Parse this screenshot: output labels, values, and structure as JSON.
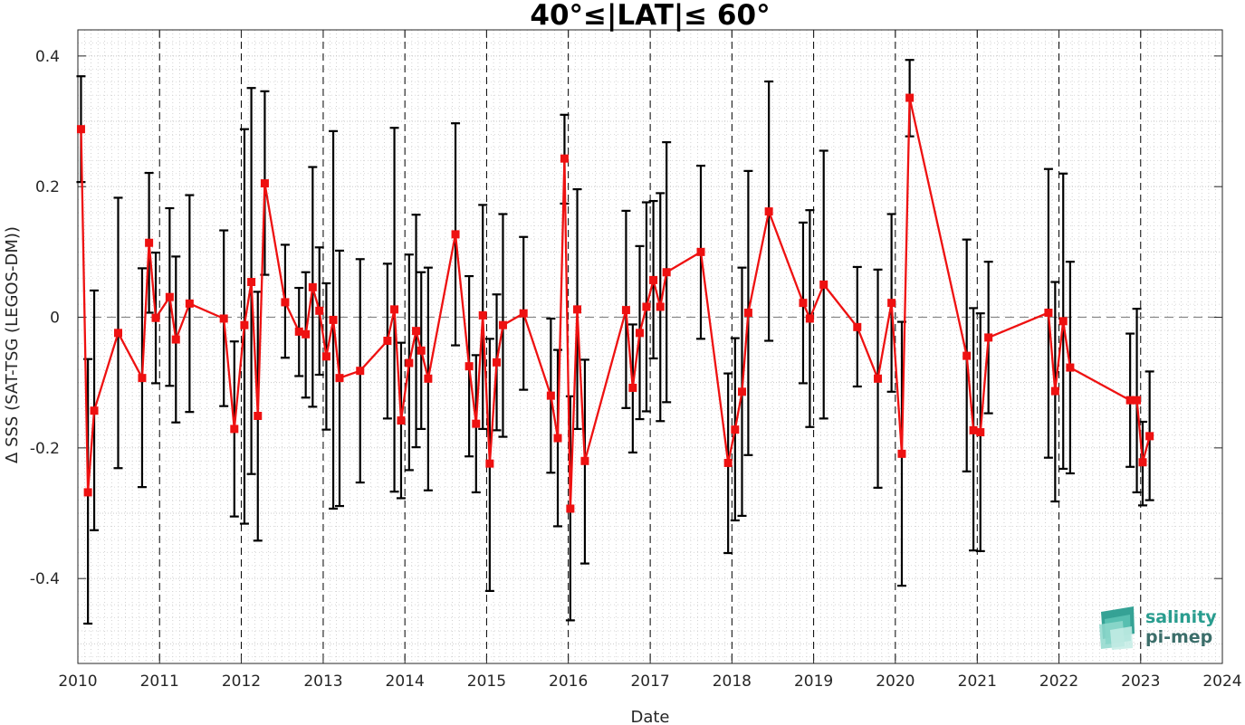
{
  "chart_data": {
    "type": "line",
    "title": "40°≤|LAT|≤ 60°",
    "xlabel": "Date",
    "ylabel": "Δ SSS (SAT-TSG (LEGOS-DM))",
    "xlim": [
      "2010-01-01",
      "2024-01-01"
    ],
    "ylim": [
      -0.53,
      0.44
    ],
    "xtick_labels": [
      "2010",
      "2011",
      "2012",
      "2013",
      "2014",
      "2015",
      "2016",
      "2017",
      "2018",
      "2019",
      "2020",
      "2021",
      "2022",
      "2023",
      "2024"
    ],
    "ytick_values": [
      -0.4,
      -0.2,
      0,
      0.2,
      0.4
    ],
    "ytick_labels": [
      "-0.4",
      "-0.2",
      "0",
      "0.2",
      "0.4"
    ],
    "grid": "minor dotted",
    "zero_line": 0,
    "year_boundaries_dashed": true,
    "series": [
      {
        "color": "#ee1111",
        "error_bar_color": "#000000",
        "marker": "square",
        "points": [
          {
            "x": "2010-01-15",
            "y": 0.288,
            "lo": 0.207,
            "hi": 0.369
          },
          {
            "x": "2010-02-15",
            "y": -0.268,
            "lo": -0.469,
            "hi": -0.064
          },
          {
            "x": "2010-03-15",
            "y": -0.143,
            "lo": -0.326,
            "hi": 0.041
          },
          {
            "x": "2010-06-30",
            "y": -0.024,
            "lo": -0.231,
            "hi": 0.183
          },
          {
            "x": "2010-10-15",
            "y": -0.093,
            "lo": -0.26,
            "hi": 0.075
          },
          {
            "x": "2010-11-15",
            "y": 0.114,
            "lo": 0.007,
            "hi": 0.221
          },
          {
            "x": "2010-12-15",
            "y": -0.001,
            "lo": -0.101,
            "hi": 0.099
          },
          {
            "x": "2011-02-15",
            "y": 0.031,
            "lo": -0.105,
            "hi": 0.167
          },
          {
            "x": "2011-03-15",
            "y": -0.034,
            "lo": -0.161,
            "hi": 0.093
          },
          {
            "x": "2011-05-15",
            "y": 0.021,
            "lo": -0.145,
            "hi": 0.187
          },
          {
            "x": "2011-10-15",
            "y": -0.002,
            "lo": -0.136,
            "hi": 0.133
          },
          {
            "x": "2011-12-01",
            "y": -0.171,
            "lo": -0.305,
            "hi": -0.037
          },
          {
            "x": "2012-01-15",
            "y": -0.012,
            "lo": -0.316,
            "hi": 0.288
          },
          {
            "x": "2012-02-15",
            "y": 0.054,
            "lo": -0.24,
            "hi": 0.351
          },
          {
            "x": "2012-03-15",
            "y": -0.151,
            "lo": -0.342,
            "hi": 0.039
          },
          {
            "x": "2012-04-15",
            "y": 0.205,
            "lo": 0.065,
            "hi": 0.346
          },
          {
            "x": "2012-07-15",
            "y": 0.023,
            "lo": -0.062,
            "hi": 0.111
          },
          {
            "x": "2012-09-15",
            "y": -0.022,
            "lo": -0.09,
            "hi": 0.045
          },
          {
            "x": "2012-10-15",
            "y": -0.026,
            "lo": -0.123,
            "hi": 0.069
          },
          {
            "x": "2012-11-15",
            "y": 0.046,
            "lo": -0.137,
            "hi": 0.23
          },
          {
            "x": "2012-12-15",
            "y": 0.01,
            "lo": -0.088,
            "hi": 0.107
          },
          {
            "x": "2013-01-15",
            "y": -0.06,
            "lo": -0.172,
            "hi": 0.052
          },
          {
            "x": "2013-02-15",
            "y": -0.004,
            "lo": -0.293,
            "hi": 0.285
          },
          {
            "x": "2013-03-15",
            "y": -0.093,
            "lo": -0.289,
            "hi": 0.102
          },
          {
            "x": "2013-06-15",
            "y": -0.082,
            "lo": -0.253,
            "hi": 0.089
          },
          {
            "x": "2013-10-15",
            "y": -0.036,
            "lo": -0.155,
            "hi": 0.082
          },
          {
            "x": "2013-11-15",
            "y": 0.012,
            "lo": -0.267,
            "hi": 0.29
          },
          {
            "x": "2013-12-15",
            "y": -0.158,
            "lo": -0.277,
            "hi": -0.039
          },
          {
            "x": "2014-01-20",
            "y": -0.07,
            "lo": -0.234,
            "hi": 0.096
          },
          {
            "x": "2014-02-20",
            "y": -0.021,
            "lo": -0.199,
            "hi": 0.157
          },
          {
            "x": "2014-03-15",
            "y": -0.051,
            "lo": -0.171,
            "hi": 0.069
          },
          {
            "x": "2014-04-15",
            "y": -0.094,
            "lo": -0.265,
            "hi": 0.076
          },
          {
            "x": "2014-08-15",
            "y": 0.127,
            "lo": -0.043,
            "hi": 0.297
          },
          {
            "x": "2014-10-15",
            "y": -0.075,
            "lo": -0.213,
            "hi": 0.063
          },
          {
            "x": "2014-11-15",
            "y": -0.163,
            "lo": -0.268,
            "hi": -0.058
          },
          {
            "x": "2014-12-15",
            "y": 0.003,
            "lo": -0.171,
            "hi": 0.172
          },
          {
            "x": "2015-01-15",
            "y": -0.224,
            "lo": -0.419,
            "hi": -0.033
          },
          {
            "x": "2015-02-15",
            "y": -0.069,
            "lo": -0.173,
            "hi": 0.035
          },
          {
            "x": "2015-03-15",
            "y": -0.012,
            "lo": -0.183,
            "hi": 0.158
          },
          {
            "x": "2015-06-15",
            "y": 0.006,
            "lo": -0.111,
            "hi": 0.123
          },
          {
            "x": "2015-10-15",
            "y": -0.12,
            "lo": -0.238,
            "hi": -0.002
          },
          {
            "x": "2015-11-15",
            "y": -0.185,
            "lo": -0.32,
            "hi": -0.05
          },
          {
            "x": "2015-12-15",
            "y": 0.243,
            "lo": 0.174,
            "hi": 0.31
          },
          {
            "x": "2016-01-10",
            "y": -0.293,
            "lo": -0.464,
            "hi": -0.121
          },
          {
            "x": "2016-02-10",
            "y": 0.012,
            "lo": -0.171,
            "hi": 0.196
          },
          {
            "x": "2016-03-15",
            "y": -0.22,
            "lo": -0.377,
            "hi": -0.065
          },
          {
            "x": "2016-09-15",
            "y": 0.011,
            "lo": -0.139,
            "hi": 0.163
          },
          {
            "x": "2016-10-15",
            "y": -0.108,
            "lo": -0.207,
            "hi": -0.011
          },
          {
            "x": "2016-11-15",
            "y": -0.024,
            "lo": -0.156,
            "hi": 0.109
          },
          {
            "x": "2016-12-15",
            "y": 0.016,
            "lo": -0.144,
            "hi": 0.176
          },
          {
            "x": "2017-01-15",
            "y": 0.057,
            "lo": -0.063,
            "hi": 0.178
          },
          {
            "x": "2017-02-15",
            "y": 0.016,
            "lo": -0.159,
            "hi": 0.19
          },
          {
            "x": "2017-03-15",
            "y": 0.069,
            "lo": -0.13,
            "hi": 0.268
          },
          {
            "x": "2017-08-15",
            "y": 0.1,
            "lo": -0.033,
            "hi": 0.232
          },
          {
            "x": "2017-12-15",
            "y": -0.223,
            "lo": -0.361,
            "hi": -0.086
          },
          {
            "x": "2018-01-15",
            "y": -0.172,
            "lo": -0.311,
            "hi": -0.032
          },
          {
            "x": "2018-02-15",
            "y": -0.114,
            "lo": -0.304,
            "hi": 0.076
          },
          {
            "x": "2018-03-15",
            "y": 0.007,
            "lo": -0.211,
            "hi": 0.224
          },
          {
            "x": "2018-06-15",
            "y": 0.162,
            "lo": -0.036,
            "hi": 0.361
          },
          {
            "x": "2018-11-15",
            "y": 0.022,
            "lo": -0.101,
            "hi": 0.145
          },
          {
            "x": "2018-12-15",
            "y": -0.002,
            "lo": -0.168,
            "hi": 0.164
          },
          {
            "x": "2019-02-15",
            "y": 0.05,
            "lo": -0.155,
            "hi": 0.255
          },
          {
            "x": "2019-07-15",
            "y": -0.015,
            "lo": -0.106,
            "hi": 0.077
          },
          {
            "x": "2019-10-15",
            "y": -0.094,
            "lo": -0.261,
            "hi": 0.073
          },
          {
            "x": "2019-12-15",
            "y": 0.022,
            "lo": -0.114,
            "hi": 0.158
          },
          {
            "x": "2020-01-30",
            "y": -0.209,
            "lo": -0.411,
            "hi": -0.007
          },
          {
            "x": "2020-03-05",
            "y": 0.336,
            "lo": 0.277,
            "hi": 0.394
          },
          {
            "x": "2020-11-15",
            "y": -0.059,
            "lo": -0.236,
            "hi": 0.119
          },
          {
            "x": "2020-12-15",
            "y": -0.173,
            "lo": -0.357,
            "hi": 0.014
          },
          {
            "x": "2021-01-15",
            "y": -0.176,
            "lo": -0.358,
            "hi": 0.006
          },
          {
            "x": "2021-02-20",
            "y": -0.031,
            "lo": -0.147,
            "hi": 0.085
          },
          {
            "x": "2021-11-15",
            "y": 0.007,
            "lo": -0.215,
            "hi": 0.227
          },
          {
            "x": "2021-12-15",
            "y": -0.113,
            "lo": -0.282,
            "hi": 0.054
          },
          {
            "x": "2022-01-20",
            "y": -0.006,
            "lo": -0.232,
            "hi": 0.22
          },
          {
            "x": "2022-02-20",
            "y": -0.077,
            "lo": -0.239,
            "hi": 0.085
          },
          {
            "x": "2022-11-15",
            "y": -0.127,
            "lo": -0.229,
            "hi": -0.025
          },
          {
            "x": "2022-12-15",
            "y": -0.127,
            "lo": -0.268,
            "hi": 0.013
          },
          {
            "x": "2023-01-10",
            "y": -0.222,
            "lo": -0.288,
            "hi": -0.16
          },
          {
            "x": "2023-02-10",
            "y": -0.182,
            "lo": -0.28,
            "hi": -0.083
          }
        ]
      }
    ]
  },
  "logo": {
    "line1": "salinity",
    "line2": "pi-mep",
    "color_primary": "#2a9d8f",
    "color_secondary": "#3c6e6a"
  }
}
